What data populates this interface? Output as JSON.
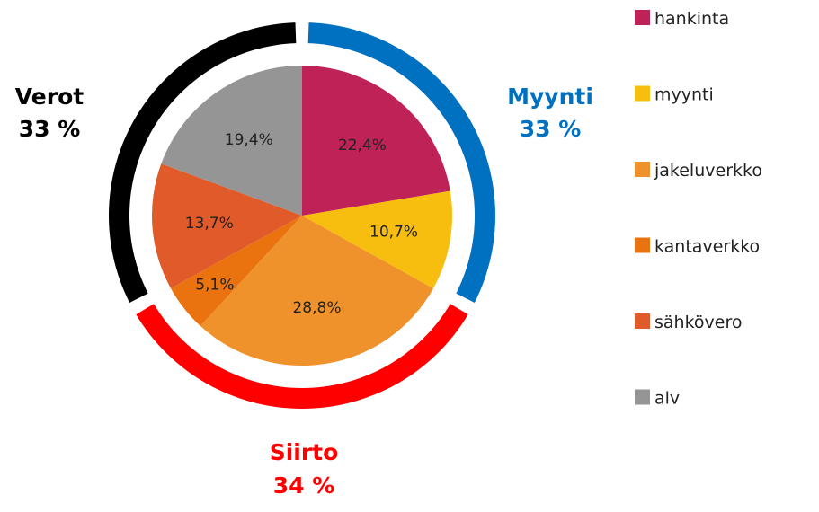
{
  "chart_data": {
    "type": "pie",
    "inner": {
      "categories": [
        "hankinta",
        "myynti",
        "jakeluverkko",
        "kantaverkko",
        "sähkövero",
        "alv"
      ],
      "values": [
        22.4,
        10.7,
        28.8,
        5.1,
        13.7,
        19.4
      ],
      "labels": [
        "22,4%",
        "10,7%",
        "28,8%",
        "5,1%",
        "13,7%",
        "19,4%"
      ],
      "colors": [
        "#bf2257",
        "#f7bd0f",
        "#f0922b",
        "#ea7310",
        "#e05a2a",
        "#959595"
      ]
    },
    "outer": {
      "groups": [
        {
          "name": "Myynti",
          "pct": "33 %",
          "value": 33,
          "color": "#0070c0"
        },
        {
          "name": "Siirto",
          "pct": "34 %",
          "value": 34,
          "color": "#ff0000"
        },
        {
          "name": "Verot",
          "pct": "33 %",
          "value": 33,
          "color": "#000000"
        }
      ]
    },
    "legend": {
      "position": "right",
      "items": [
        "hankinta",
        "myynti",
        "jakeluverkko",
        "kantaverkko",
        "sähkövero",
        "alv"
      ]
    }
  }
}
